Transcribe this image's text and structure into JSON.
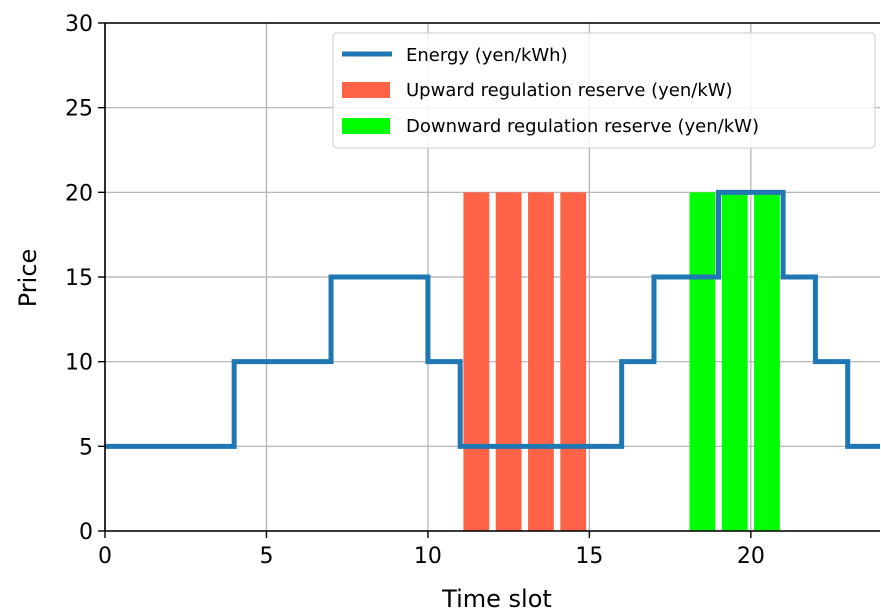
{
  "chart_data": {
    "type": "bar",
    "xlabel": "Time slot",
    "ylabel": "Price",
    "xlim": [
      0,
      24
    ],
    "ylim": [
      0,
      30
    ],
    "xticks": [
      0,
      5,
      10,
      15,
      20
    ],
    "yticks": [
      0,
      5,
      10,
      15,
      20,
      25,
      30
    ],
    "grid": true,
    "legend_position": "top-right",
    "colors": {
      "energy": "#1f77b4",
      "upward": "#ff6347",
      "downward": "#00ff00",
      "grid": "#b0b0b0"
    },
    "series": [
      {
        "name": "Energy (yen/kWh)",
        "type": "step",
        "x": [
          0,
          1,
          2,
          3,
          4,
          5,
          6,
          7,
          8,
          9,
          10,
          11,
          12,
          13,
          14,
          15,
          16,
          17,
          18,
          19,
          20,
          21,
          22,
          23,
          24
        ],
        "y": [
          5,
          5,
          5,
          5,
          10,
          10,
          10,
          15,
          15,
          15,
          10,
          5,
          5,
          5,
          5,
          5,
          10,
          15,
          15,
          20,
          20,
          15,
          10,
          5,
          5
        ]
      },
      {
        "name": "Upward regulation reserve (yen/kW)",
        "type": "bar",
        "x": [
          11,
          12,
          13,
          14
        ],
        "values": [
          20,
          20,
          20,
          20
        ]
      },
      {
        "name": "Downward regulation reserve (yen/kW)",
        "type": "bar",
        "x": [
          18,
          19,
          20
        ],
        "values": [
          20,
          20,
          20
        ]
      }
    ]
  }
}
